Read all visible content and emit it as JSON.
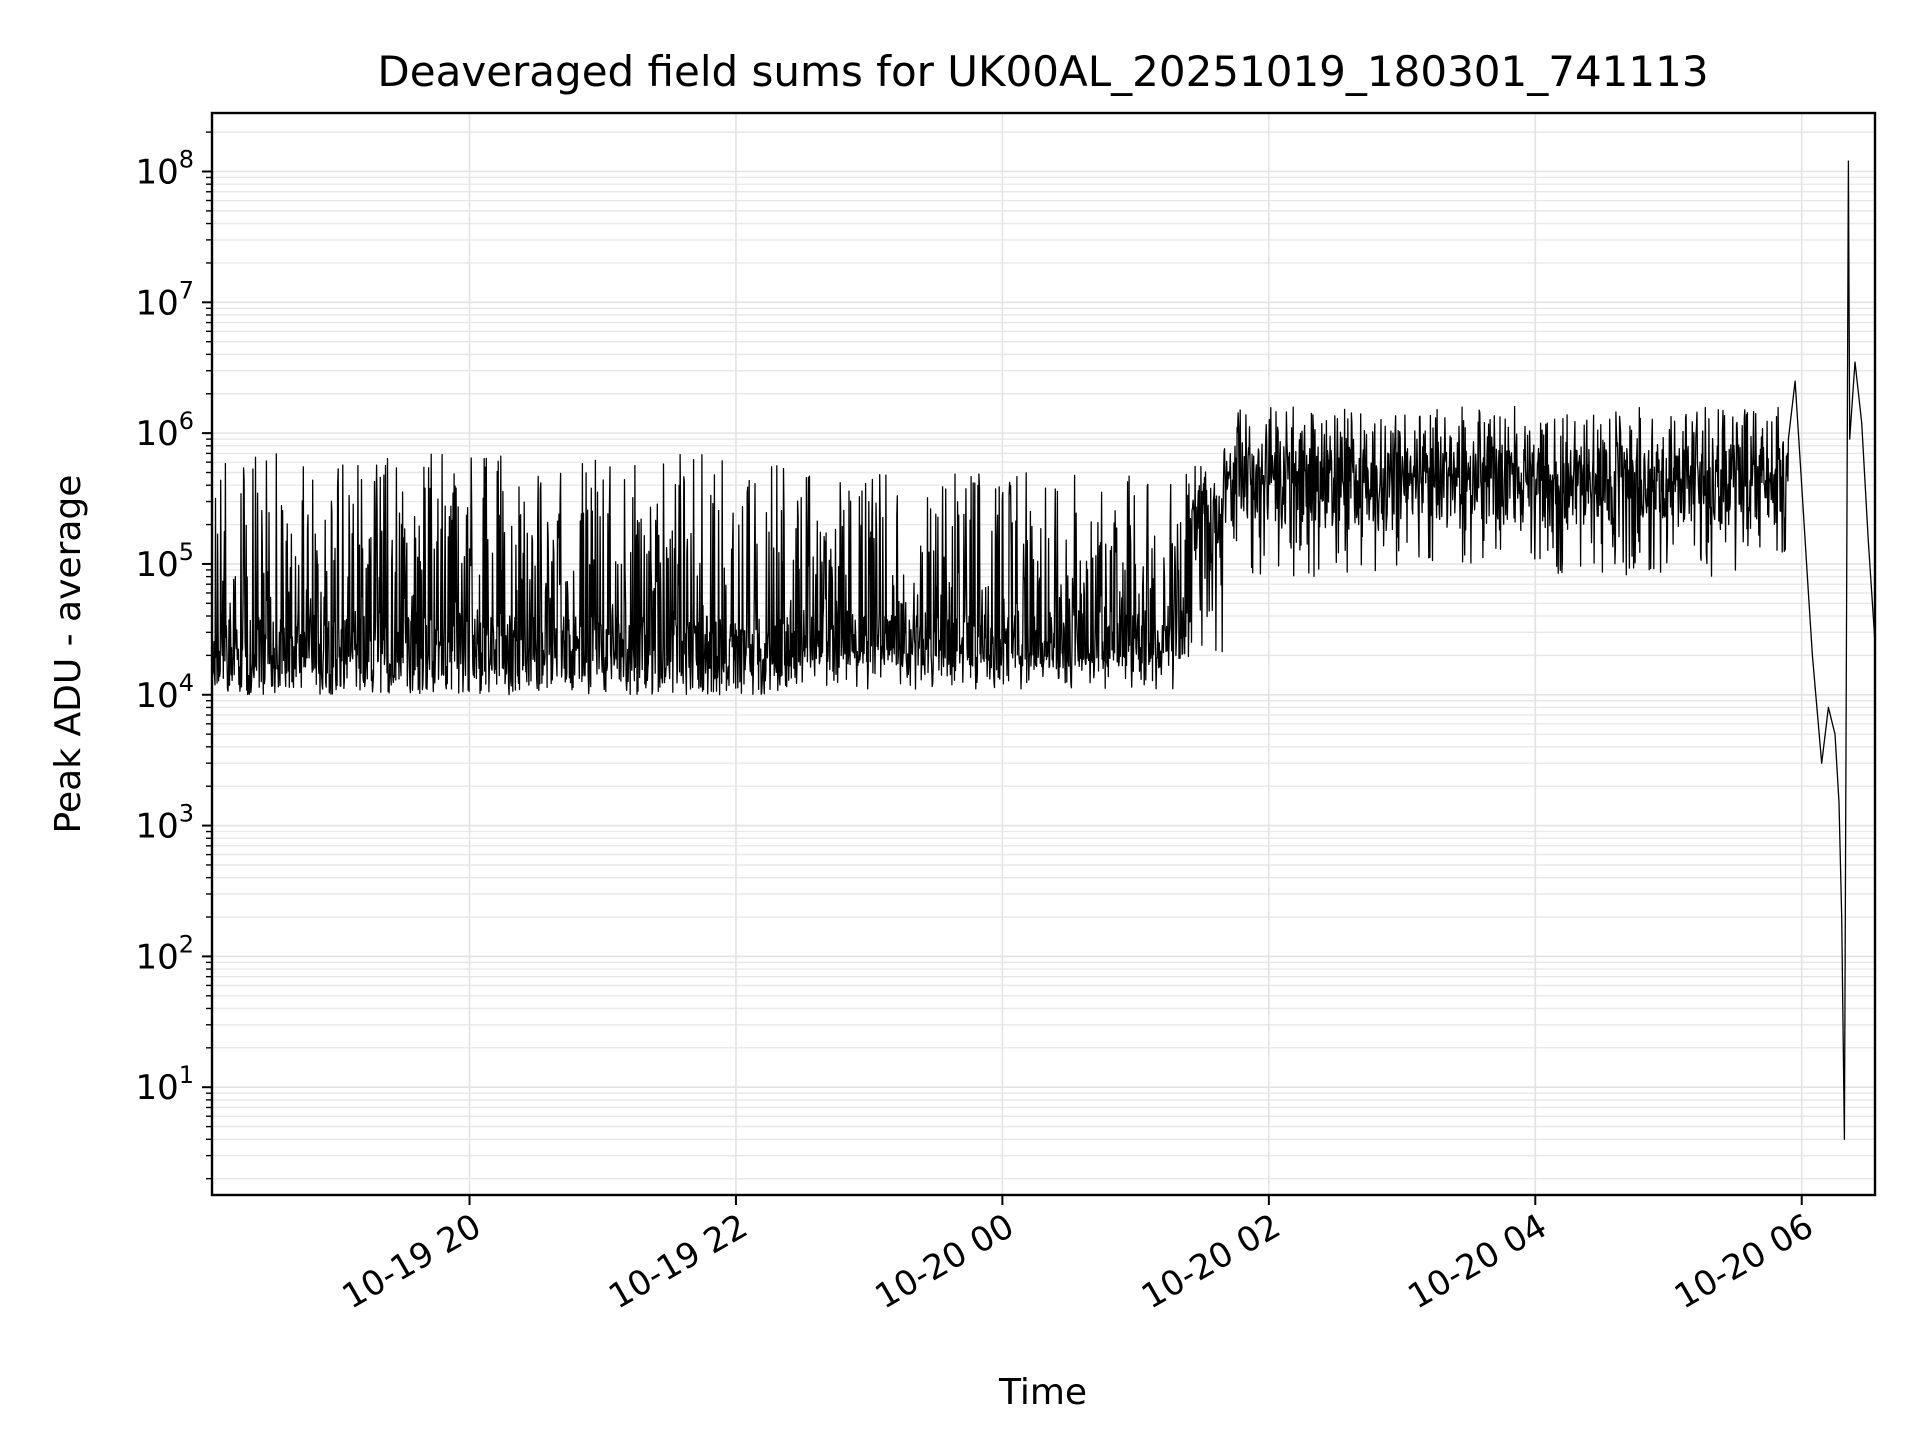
{
  "chart_data": {
    "type": "line",
    "title": "Deaveraged field sums for UK00AL_20251019_180301_741113",
    "xlabel": "Time",
    "ylabel": "Peak ADU - average",
    "yscale": "log",
    "ylim": [
      1.5,
      280000000
    ],
    "xlim": [
      "2025-10-19 18:03",
      "2025-10-20 06:35"
    ],
    "x_tick_labels": [
      "10-19 20",
      "10-19 22",
      "10-20 00",
      "10-20 02",
      "10-20 04",
      "10-20 06"
    ],
    "x_tick_hours": [
      2,
      4,
      6,
      8,
      10,
      12
    ],
    "x_range_hours": [
      0.067,
      12.55
    ],
    "y_tick_exponents": [
      1,
      2,
      3,
      4,
      5,
      6,
      7,
      8
    ],
    "grid": true,
    "legend": "none",
    "series": [
      {
        "name": "Peak ADU - average",
        "color": "#000000",
        "segments": [
          {
            "t_start": 0.07,
            "t_end": 4.4,
            "baseline": 20000,
            "peak": 700000,
            "low": 10000
          },
          {
            "t_start": 4.4,
            "t_end": 7.4,
            "baseline": 22000,
            "peak": 500000,
            "low": 16000
          },
          {
            "t_start": 7.4,
            "t_end": 7.66,
            "baseline": 200000,
            "peak": 600000,
            "low": 20000
          },
          {
            "t_start": 7.66,
            "t_end": 11.9,
            "baseline": 400000,
            "peak": 1600000,
            "low": 80000
          }
        ],
        "events": [
          {
            "t": 11.95,
            "value": 2500000
          },
          {
            "t": 12.15,
            "value": 3000
          },
          {
            "t": 12.32,
            "value": 4
          },
          {
            "t": 12.35,
            "value": 120000000
          },
          {
            "t": 12.4,
            "value": 3500000
          },
          {
            "t": 12.55,
            "value": 25000
          }
        ]
      }
    ]
  }
}
